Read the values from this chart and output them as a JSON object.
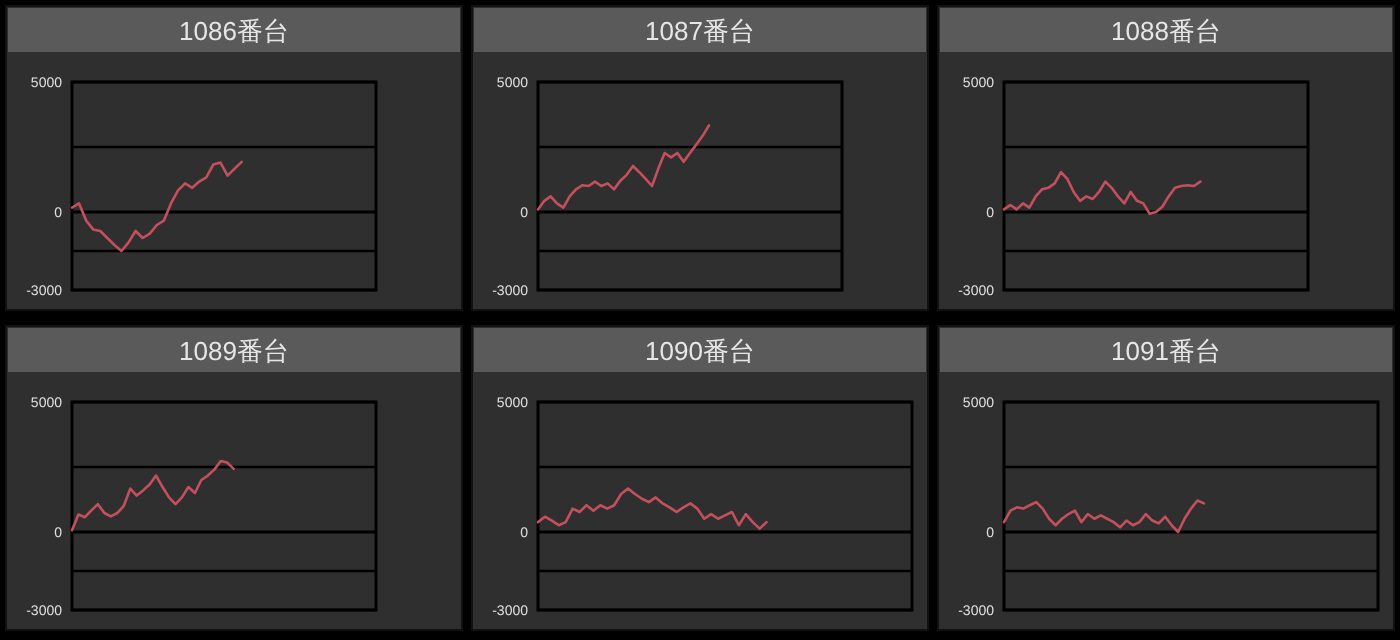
{
  "chart_data": [
    {
      "type": "line",
      "title": "1086番台",
      "categories": [
        null,
        null,
        null,
        null,
        null,
        null,
        null,
        null,
        null,
        null,
        null,
        null,
        null,
        null,
        null,
        null,
        null,
        null,
        null,
        null,
        null,
        null,
        null,
        null,
        null,
        null,
        null,
        null,
        null,
        null,
        null,
        null,
        null,
        null,
        null,
        null,
        null,
        null,
        null,
        null,
        null,
        null,
        null,
        null
      ],
      "ylim": [
        -3000,
        5000
      ],
      "yticks": [
        5000,
        0,
        -3000
      ],
      "ref_lines": [
        {
          "axis": "y",
          "value": 2500
        },
        {
          "axis": "y",
          "value": -1500
        }
      ],
      "grid": "y",
      "tick_labels": "y",
      "series": [
        {
          "color": "#c4505c",
          "values": [
            170,
            330,
            -330,
            -670,
            -730,
            -1000,
            -1270,
            -1500,
            -1170,
            -730,
            -1000,
            -830,
            -500,
            -330,
            330,
            830,
            1100,
            930,
            1170,
            1330,
            1830,
            1900,
            1400,
            1670,
            1930,
            null,
            null,
            null,
            null,
            null,
            null,
            null,
            null,
            null,
            null,
            null,
            null,
            null,
            null,
            null,
            null,
            null,
            null,
            null
          ]
        }
      ]
    },
    {
      "type": "line",
      "title": "1087番台",
      "categories": [
        null,
        null,
        null,
        null,
        null,
        null,
        null,
        null,
        null,
        null,
        null,
        null,
        null,
        null,
        null,
        null,
        null,
        null,
        null,
        null,
        null,
        null,
        null,
        null,
        null,
        null,
        null,
        null,
        null,
        null,
        null,
        null,
        null,
        null,
        null,
        null,
        null,
        null,
        null,
        null,
        null,
        null,
        null,
        null,
        null,
        null,
        null,
        null,
        null
      ],
      "ylim": [
        -3000,
        5000
      ],
      "yticks": [
        5000,
        0,
        -3000
      ],
      "ref_lines": [
        {
          "axis": "y",
          "value": 2500
        },
        {
          "axis": "y",
          "value": -1500
        }
      ],
      "grid": "y",
      "tick_labels": "y",
      "series": [
        {
          "color": "#c4505c",
          "values": [
            100,
            430,
            600,
            330,
            170,
            600,
            870,
            1030,
            1000,
            1170,
            1000,
            1100,
            870,
            1200,
            1430,
            1770,
            1530,
            1270,
            1000,
            1670,
            2270,
            2100,
            2270,
            1930,
            2270,
            2600,
            2930,
            3330,
            null,
            null,
            null,
            null,
            null,
            null,
            null,
            null,
            null,
            null,
            null,
            null,
            null,
            null,
            null,
            null,
            null,
            null,
            null,
            null,
            null
          ]
        }
      ]
    },
    {
      "type": "line",
      "title": "1088番台",
      "categories": [
        null,
        null,
        null,
        null,
        null,
        null,
        null,
        null,
        null,
        null,
        null,
        null,
        null,
        null,
        null,
        null,
        null,
        null,
        null,
        null,
        null,
        null,
        null,
        null,
        null,
        null,
        null,
        null,
        null,
        null,
        null,
        null,
        null,
        null,
        null,
        null,
        null,
        null,
        null,
        null,
        null,
        null,
        null,
        null,
        null,
        null,
        null,
        null,
        null
      ],
      "ylim": [
        -3000,
        5000
      ],
      "yticks": [
        5000,
        0,
        -3000
      ],
      "ref_lines": [
        {
          "axis": "y",
          "value": 2500
        },
        {
          "axis": "y",
          "value": -1500
        }
      ],
      "grid": "y",
      "tick_labels": "y",
      "series": [
        {
          "color": "#c4505c",
          "values": [
            100,
            270,
            100,
            330,
            170,
            600,
            870,
            930,
            1100,
            1530,
            1270,
            770,
            430,
            600,
            500,
            770,
            1170,
            930,
            600,
            330,
            770,
            430,
            330,
            -70,
            0,
            200,
            600,
            930,
            1000,
            1030,
            1000,
            1170,
            null,
            null,
            null,
            null,
            null,
            null,
            null,
            null,
            null,
            null,
            null,
            null,
            null,
            null,
            null,
            null,
            null
          ]
        }
      ]
    },
    {
      "type": "line",
      "title": "1089番台",
      "categories": [
        null,
        null,
        null,
        null,
        null,
        null,
        null,
        null,
        null,
        null,
        null,
        null,
        null,
        null,
        null,
        null,
        null,
        null,
        null,
        null,
        null,
        null,
        null,
        null,
        null,
        null,
        null,
        null,
        null,
        null,
        null,
        null,
        null,
        null,
        null,
        null,
        null,
        null,
        null,
        null,
        null,
        null,
        null,
        null,
        null,
        null,
        null,
        null
      ],
      "ylim": [
        -3000,
        5000
      ],
      "yticks": [
        5000,
        0,
        -3000
      ],
      "ref_lines": [
        {
          "axis": "y",
          "value": 2500
        },
        {
          "axis": "y",
          "value": -1500
        }
      ],
      "grid": "y",
      "tick_labels": "y",
      "series": [
        {
          "color": "#c4505c",
          "values": [
            70,
            670,
            570,
            830,
            1070,
            730,
            600,
            730,
            1000,
            1670,
            1400,
            1600,
            1830,
            2170,
            1730,
            1330,
            1070,
            1330,
            1730,
            1500,
            2000,
            2170,
            2400,
            2730,
            2670,
            2430,
            null,
            null,
            null,
            null,
            null,
            null,
            null,
            null,
            null,
            null,
            null,
            null,
            null,
            null,
            null,
            null,
            null,
            null,
            null,
            null,
            null,
            null
          ]
        }
      ]
    },
    {
      "type": "line",
      "title": "1090番台",
      "categories": [
        null,
        null,
        null,
        null,
        null,
        null,
        null,
        null,
        null,
        null,
        null,
        null,
        null,
        null,
        null,
        null,
        null,
        null,
        null,
        null,
        null,
        null,
        null,
        null,
        null,
        null,
        null,
        null,
        null,
        null,
        null,
        null,
        null,
        null,
        null,
        null,
        null,
        null,
        null,
        null,
        null,
        null,
        null,
        null,
        null,
        null,
        null,
        null,
        null,
        null,
        null,
        null,
        null,
        null,
        null
      ],
      "ylim": [
        -3000,
        5000
      ],
      "yticks": [
        5000,
        0,
        -3000
      ],
      "ref_lines": [
        {
          "axis": "y",
          "value": 2500
        },
        {
          "axis": "y",
          "value": -1500
        }
      ],
      "grid": "y",
      "tick_labels": "y",
      "series": [
        {
          "color": "#c4505c",
          "values": [
            380,
            590,
            440,
            260,
            380,
            900,
            770,
            1030,
            820,
            1030,
            900,
            1030,
            1460,
            1670,
            1460,
            1280,
            1150,
            1330,
            1100,
            950,
            770,
            950,
            1100,
            900,
            510,
            690,
            510,
            640,
            770,
            260,
            690,
            380,
            130,
            380,
            null,
            null,
            null,
            null,
            null,
            null,
            null,
            null,
            null,
            null,
            null,
            null,
            null,
            null,
            null,
            null,
            null,
            null,
            null,
            null,
            null
          ]
        }
      ]
    },
    {
      "type": "line",
      "title": "1091番台",
      "categories": [
        null,
        null,
        null,
        null,
        null,
        null,
        null,
        null,
        null,
        null,
        null,
        null,
        null,
        null,
        null,
        null,
        null,
        null,
        null,
        null,
        null,
        null,
        null,
        null,
        null,
        null,
        null,
        null,
        null,
        null,
        null,
        null,
        null,
        null,
        null,
        null,
        null,
        null,
        null,
        null,
        null,
        null,
        null,
        null,
        null,
        null,
        null,
        null,
        null,
        null,
        null,
        null,
        null,
        null,
        null,
        null,
        null,
        null,
        null
      ],
      "ylim": [
        -3000,
        5000
      ],
      "yticks": [
        5000,
        0,
        -3000
      ],
      "ref_lines": [
        {
          "axis": "y",
          "value": 2500
        },
        {
          "axis": "y",
          "value": -1500
        }
      ],
      "grid": "y",
      "tick_labels": "y",
      "series": [
        {
          "color": "#c4505c",
          "values": [
            380,
            820,
            950,
            900,
            1030,
            1150,
            900,
            510,
            260,
            510,
            690,
            820,
            380,
            690,
            510,
            640,
            510,
            380,
            180,
            440,
            260,
            380,
            690,
            440,
            330,
            590,
            260,
            0,
            510,
            900,
            1210,
            1100,
            null,
            null,
            null,
            null,
            null,
            null,
            null,
            null,
            null,
            null,
            null,
            null,
            null,
            null,
            null,
            null,
            null,
            null,
            null,
            null,
            null,
            null,
            null,
            null,
            null,
            null,
            null
          ]
        }
      ]
    }
  ]
}
